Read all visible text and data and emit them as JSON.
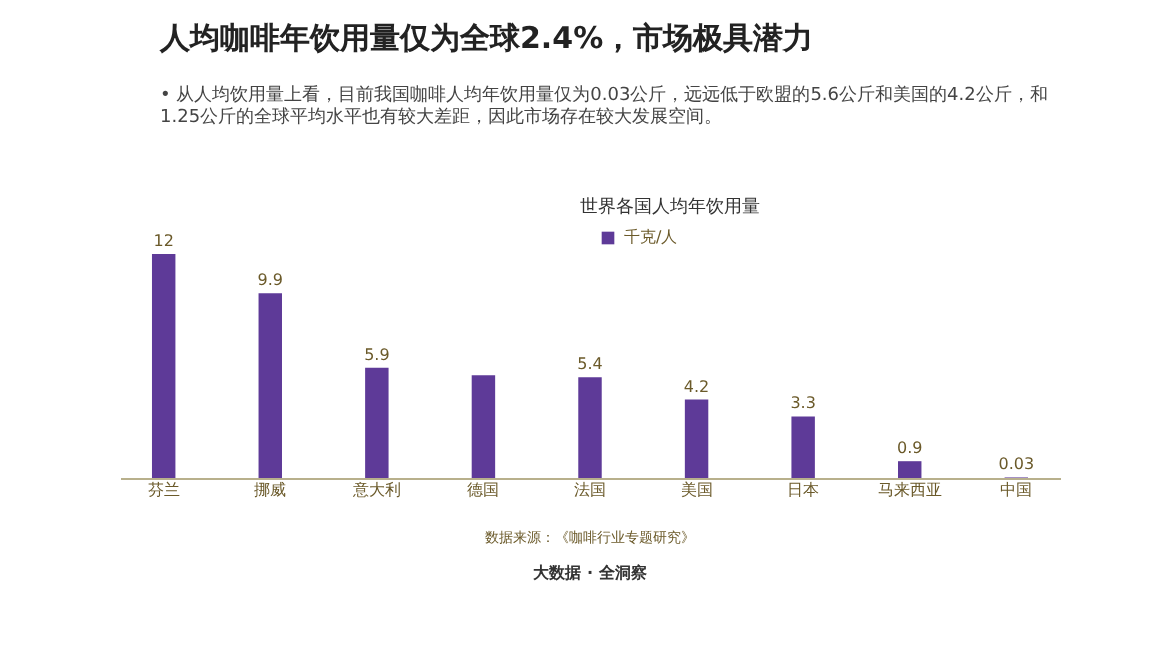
{
  "chart_data": {
    "type": "bar",
    "title": "人均咖啡年饮用量仅为全球2.4%，市场极具潜力",
    "subtitle": "•  从人均饮用量上看，目前我国咖啡人均年饮用量仅为0.03公斤，远远低于欧盟的5.6公斤和美国的4.2公斤，和\n    1.25公斤的全球平均水平也有较大差距，因此市场存在较大发展空间。",
    "categories": [
      "芬兰",
      "挪威",
      "意大利",
      "德国",
      "法国",
      "美国",
      "日本",
      "马来西亚",
      "中国"
    ],
    "series": [
      {
        "name": "千克/人",
        "color": "#5e3a98",
        "values": [
          12,
          9.9,
          5.9,
          5.5,
          5.4,
          4.2,
          3.3,
          0.9,
          0.03
        ],
        "value_labels": [
          "12",
          "9.9",
          "5.9",
          null,
          "5.4",
          "4.2",
          "3.3",
          "0.9",
          "0.03"
        ]
      }
    ],
    "legend": "top",
    "annotations": [
      "世界各国人均年饮用量",
      "数据来源：《咖啡行业专题研究》",
      "大数据 · 全洞察"
    ]
  }
}
